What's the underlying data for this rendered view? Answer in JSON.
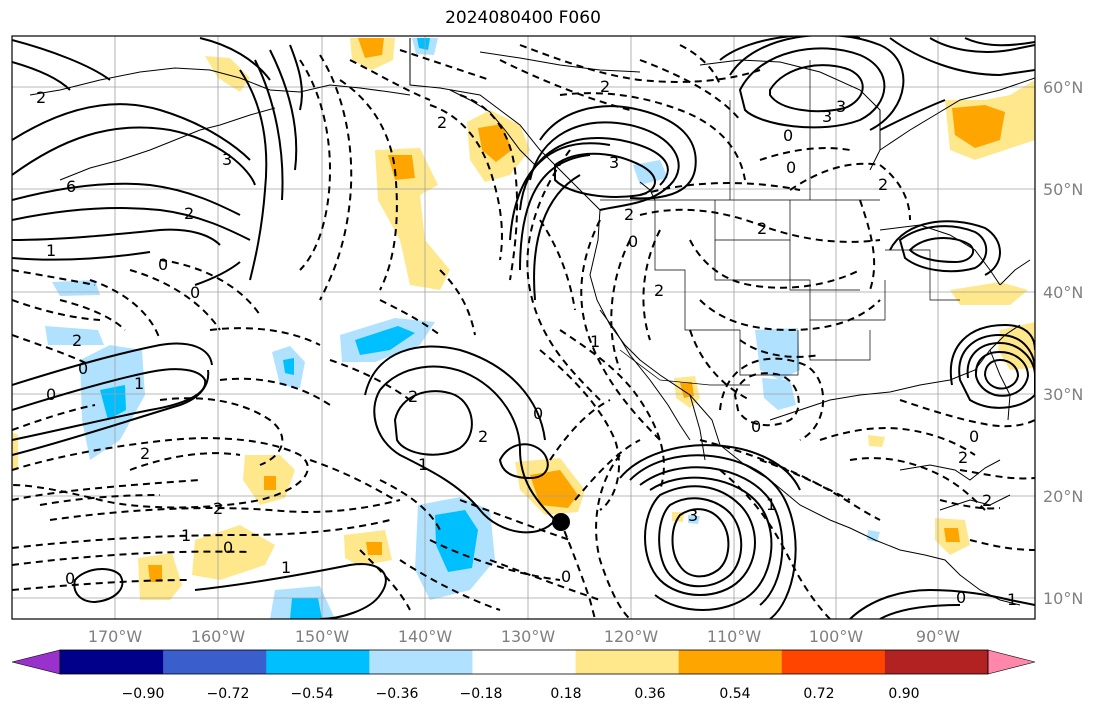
{
  "title": "2024080400 F060",
  "lat_labels": [
    "60°N",
    "50°N",
    "40°N",
    "30°N",
    "20°N",
    "10°N"
  ],
  "lon_labels": [
    "170°W",
    "160°W",
    "150°W",
    "140°W",
    "130°W",
    "120°W",
    "110°W",
    "100°W",
    "90°W"
  ],
  "colorbar": {
    "ticks": [
      "−0.90",
      "−0.72",
      "−0.54",
      "−0.36",
      "−0.18",
      "0.18",
      "0.36",
      "0.54",
      "0.72",
      "0.90"
    ],
    "colors": [
      "#9932cc",
      "#00008b",
      "#3a5fcd",
      "#00bfff",
      "#b0e2ff",
      "#ffffff",
      "#ffe88c",
      "#ffa500",
      "#ff4500",
      "#b22222",
      "#ff88aa"
    ]
  },
  "contour_labels": [
    "2",
    "3",
    "6",
    "2",
    "1",
    "0",
    "0",
    "2",
    "3",
    "0",
    "3",
    "2",
    "3",
    "2",
    "2",
    "0",
    "2",
    "0",
    "1",
    "2",
    "2",
    "0",
    "2",
    "1",
    "0",
    "2",
    "3",
    "1",
    "0",
    "0",
    "2",
    "2",
    "1",
    "0",
    "1",
    "2",
    "1",
    "0",
    "0",
    "0",
    "2",
    "0",
    "1"
  ]
}
